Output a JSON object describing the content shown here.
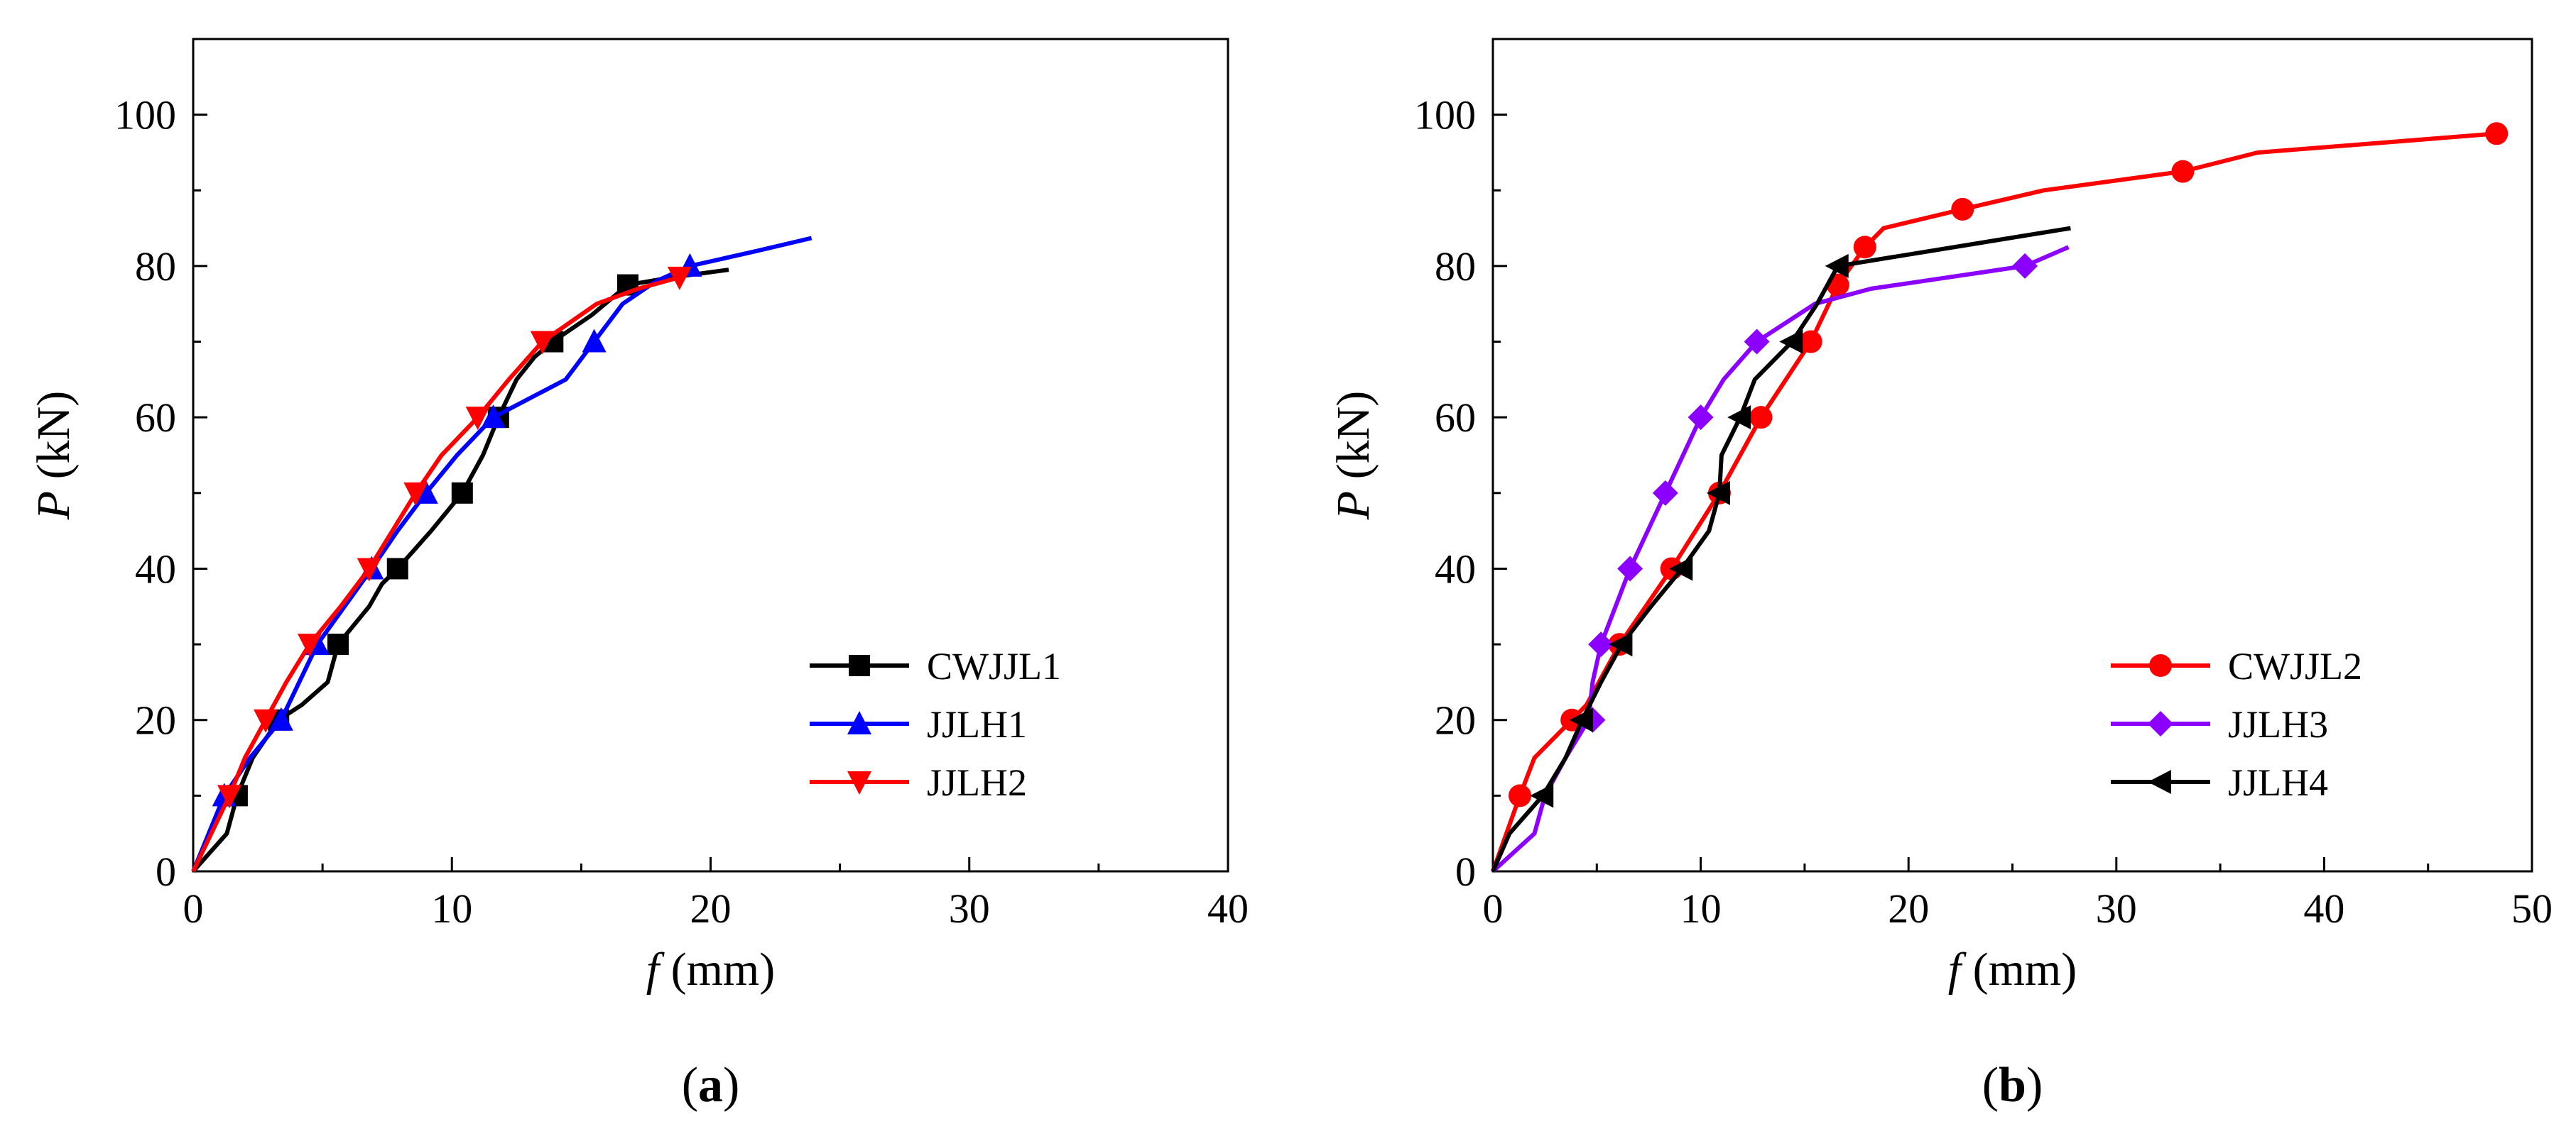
{
  "chart_data": [
    {
      "type": "line",
      "panel_label": "a",
      "xlabel_symbol": "f",
      "xlabel_unit": "(mm)",
      "ylabel_symbol": "P",
      "ylabel_unit": "(kN)",
      "xlim": [
        0,
        40
      ],
      "ylim": [
        0,
        110
      ],
      "xticks": [
        0,
        10,
        20,
        30,
        40
      ],
      "yticks": [
        0,
        20,
        40,
        60,
        80,
        100
      ],
      "grid": false,
      "legend_position": "lower-right",
      "series": [
        {
          "name": "CWJJL1",
          "color": "#000000",
          "marker": "square",
          "x": [
            0,
            1.3,
            1.7,
            2.3,
            3.3,
            4.2,
            5.2,
            5.6,
            6.8,
            7.3,
            7.9,
            9.2,
            10.4,
            11.2,
            11.8,
            12.5,
            13.2,
            13.9,
            15.4,
            16.8,
            18.5,
            20.7
          ],
          "y": [
            0,
            5,
            10,
            15,
            20,
            22,
            25,
            30,
            35,
            38,
            40,
            45,
            50,
            55,
            60,
            65,
            68,
            70,
            73.5,
            77.5,
            78.5,
            79.5
          ],
          "marker_x": [
            1.7,
            3.3,
            5.6,
            7.9,
            10.4,
            11.8,
            13.9,
            16.8
          ],
          "marker_y": [
            10,
            20,
            30,
            40,
            50,
            60,
            70,
            77.5
          ]
        },
        {
          "name": "JJLH1",
          "color": "#0000FF",
          "marker": "triangle-up",
          "x": [
            0,
            1.2,
            2.2,
            3.4,
            4.8,
            6.9,
            7.9,
            9.0,
            10.2,
            11.6,
            14.4,
            15.5,
            16.6,
            17.9,
            19.2,
            21.8,
            23.9
          ],
          "y": [
            0,
            10,
            15,
            20,
            30,
            40,
            45,
            50,
            55,
            60,
            65,
            70,
            75,
            78,
            80,
            82,
            83.7
          ],
          "marker_x": [
            1.2,
            3.4,
            4.8,
            6.9,
            9.0,
            11.6,
            15.5,
            19.2
          ],
          "marker_y": [
            10,
            20,
            30,
            40,
            50,
            60,
            70,
            80
          ]
        },
        {
          "name": "JJLH2",
          "color": "#FF0000",
          "marker": "triangle-down",
          "x": [
            0,
            1.4,
            2.0,
            2.8,
            3.6,
            4.5,
            5.7,
            6.8,
            8.6,
            9.6,
            11.0,
            12.2,
            13.5,
            15.6,
            17.2,
            18.8
          ],
          "y": [
            0,
            10,
            15,
            20,
            25,
            30,
            35,
            40,
            50,
            55,
            60,
            65,
            70,
            75,
            77,
            78.5
          ],
          "marker_x": [
            1.4,
            2.8,
            4.5,
            6.8,
            8.6,
            11.0,
            13.5,
            18.8
          ],
          "marker_y": [
            10,
            20,
            30,
            40,
            50,
            60,
            70,
            78.5
          ]
        }
      ]
    },
    {
      "type": "line",
      "panel_label": "b",
      "xlabel_symbol": "f",
      "xlabel_unit": "(mm)",
      "ylabel_symbol": "P",
      "ylabel_unit": "(kN)",
      "xlim": [
        0,
        50
      ],
      "ylim": [
        0,
        110
      ],
      "xticks": [
        0,
        10,
        20,
        30,
        40,
        50
      ],
      "yticks": [
        0,
        20,
        40,
        60,
        80,
        100
      ],
      "grid": false,
      "legend_position": "lower-right",
      "series": [
        {
          "name": "CWJJL2",
          "color": "#FF0000",
          "marker": "circle",
          "x": [
            0,
            1.3,
            2.0,
            3.8,
            4.5,
            6.1,
            8.6,
            10.9,
            12.9,
            15.3,
            16.6,
            17.9,
            18.8,
            22.6,
            26.5,
            33.2,
            36.8,
            48.3
          ],
          "y": [
            0,
            10,
            15,
            20,
            22,
            30,
            40,
            50,
            60,
            70,
            77.5,
            82.5,
            85,
            87.5,
            90,
            92.5,
            95,
            97.5
          ],
          "marker_x": [
            1.3,
            3.8,
            6.1,
            8.6,
            10.9,
            12.9,
            15.3,
            16.6,
            17.9,
            22.6,
            33.2,
            48.3
          ],
          "marker_y": [
            10,
            20,
            30,
            40,
            50,
            60,
            70,
            77.5,
            82.5,
            87.5,
            92.5,
            97.5
          ]
        },
        {
          "name": "JJLH3",
          "color": "#8B00FF",
          "marker": "diamond",
          "x": [
            0,
            2.0,
            2.5,
            3.5,
            4.6,
            4.8,
            5.2,
            6.6,
            8.3,
            10.0,
            11.1,
            12.7,
            15.5,
            18.2,
            25.6,
            27.7
          ],
          "y": [
            0,
            5,
            10,
            15,
            20,
            25,
            30,
            40,
            50,
            60,
            65,
            70,
            75,
            77,
            80,
            82.5
          ],
          "marker_x": [
            4.8,
            5.2,
            6.6,
            8.3,
            10.0,
            12.7,
            25.6
          ],
          "marker_y": [
            20,
            30,
            40,
            50,
            60,
            70,
            80
          ]
        },
        {
          "name": "JJLH4",
          "color": "#000000",
          "marker": "triangle-left",
          "x": [
            0,
            0.8,
            2.4,
            3.5,
            4.3,
            5.2,
            6.2,
            7.6,
            9.1,
            10.4,
            10.9,
            11.0,
            11.9,
            12.6,
            14.4,
            15.6,
            16.6,
            27.8
          ],
          "y": [
            0,
            5,
            10,
            15,
            20,
            25,
            30,
            35,
            40,
            45,
            50,
            55,
            60,
            65,
            70,
            75,
            80,
            85
          ],
          "marker_x": [
            2.4,
            4.3,
            6.2,
            9.1,
            10.9,
            11.9,
            14.4,
            16.6
          ],
          "marker_y": [
            10,
            20,
            30,
            40,
            50,
            60,
            70,
            80
          ]
        }
      ]
    }
  ]
}
